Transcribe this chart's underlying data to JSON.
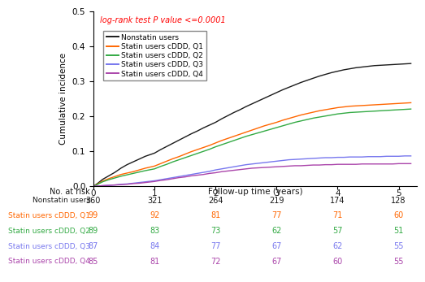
{
  "ylabel": "Cumulative incidence",
  "xlabel": "Follow-up time (years)",
  "xlim": [
    0,
    5.3
  ],
  "ylim": [
    0,
    0.5
  ],
  "yticks": [
    0.0,
    0.1,
    0.2,
    0.3,
    0.4,
    0.5
  ],
  "xticks": [
    0,
    1,
    2,
    3,
    4,
    5
  ],
  "annotation": "log-rank test P value <=0.0001",
  "annotation_color": "#FF0000",
  "legend_labels": [
    "Nonstatin users",
    "Statin users cDDD, Q1",
    "Statin users cDDD, Q2",
    "Statin users cDDD, Q3",
    "Statin users cDDD, Q4"
  ],
  "line_colors": [
    "#1a1a1a",
    "#FF6600",
    "#33AA44",
    "#7777EE",
    "#AA44AA"
  ],
  "line_widths": [
    1.0,
    1.0,
    1.0,
    1.0,
    1.0
  ],
  "risk_table_title": "No. at risk",
  "risk_table_rows": [
    "Nonstatin users",
    "Statin users cDDD, Q1",
    "Statin users cDDD, Q2",
    "Statin users cDDD, Q3",
    "Statin users cDDD, Q4"
  ],
  "risk_table_colors": [
    "#1a1a1a",
    "#FF6600",
    "#33AA44",
    "#7777EE",
    "#AA44AA"
  ],
  "risk_table_times": [
    0,
    1,
    2,
    3,
    4,
    5
  ],
  "risk_table_values": [
    [
      360,
      321,
      264,
      219,
      174,
      128
    ],
    [
      99,
      92,
      81,
      77,
      71,
      60
    ],
    [
      89,
      83,
      73,
      62,
      57,
      51
    ],
    [
      87,
      84,
      77,
      67,
      62,
      55
    ],
    [
      85,
      81,
      72,
      67,
      60,
      55
    ]
  ],
  "curves": {
    "nonstatin": {
      "x": [
        0,
        0.08,
        0.15,
        0.25,
        0.35,
        0.45,
        0.55,
        0.65,
        0.75,
        0.85,
        1.0,
        1.1,
        1.2,
        1.3,
        1.4,
        1.5,
        1.6,
        1.7,
        1.8,
        1.9,
        2.0,
        2.1,
        2.2,
        2.3,
        2.4,
        2.5,
        2.6,
        2.7,
        2.8,
        2.9,
        3.0,
        3.1,
        3.2,
        3.3,
        3.4,
        3.5,
        3.6,
        3.7,
        3.8,
        3.9,
        4.0,
        4.1,
        4.2,
        4.3,
        4.4,
        4.5,
        4.6,
        4.7,
        4.8,
        4.9,
        5.0,
        5.1,
        5.2
      ],
      "y": [
        0.0,
        0.01,
        0.02,
        0.03,
        0.04,
        0.052,
        0.062,
        0.07,
        0.078,
        0.086,
        0.095,
        0.105,
        0.114,
        0.123,
        0.132,
        0.141,
        0.15,
        0.158,
        0.167,
        0.175,
        0.183,
        0.193,
        0.202,
        0.211,
        0.219,
        0.228,
        0.236,
        0.244,
        0.252,
        0.26,
        0.268,
        0.276,
        0.283,
        0.29,
        0.297,
        0.303,
        0.309,
        0.315,
        0.32,
        0.325,
        0.329,
        0.333,
        0.336,
        0.339,
        0.341,
        0.343,
        0.345,
        0.346,
        0.347,
        0.348,
        0.349,
        0.35,
        0.351
      ]
    },
    "q1": {
      "x": [
        0,
        0.08,
        0.15,
        0.25,
        0.35,
        0.45,
        0.55,
        0.65,
        0.75,
        0.85,
        1.0,
        1.1,
        1.2,
        1.3,
        1.4,
        1.5,
        1.6,
        1.7,
        1.8,
        1.9,
        2.0,
        2.1,
        2.2,
        2.3,
        2.4,
        2.5,
        2.6,
        2.7,
        2.8,
        2.9,
        3.0,
        3.1,
        3.2,
        3.3,
        3.4,
        3.5,
        3.6,
        3.7,
        3.8,
        3.9,
        4.0,
        4.1,
        4.2,
        4.3,
        4.4,
        4.5,
        4.6,
        4.7,
        4.8,
        4.9,
        5.0,
        5.1,
        5.2
      ],
      "y": [
        0.0,
        0.008,
        0.015,
        0.022,
        0.028,
        0.034,
        0.038,
        0.042,
        0.047,
        0.052,
        0.058,
        0.065,
        0.072,
        0.079,
        0.085,
        0.092,
        0.099,
        0.105,
        0.111,
        0.117,
        0.124,
        0.131,
        0.137,
        0.143,
        0.149,
        0.155,
        0.161,
        0.167,
        0.173,
        0.178,
        0.183,
        0.189,
        0.194,
        0.199,
        0.204,
        0.208,
        0.212,
        0.216,
        0.219,
        0.222,
        0.225,
        0.227,
        0.229,
        0.23,
        0.231,
        0.232,
        0.233,
        0.234,
        0.235,
        0.236,
        0.237,
        0.238,
        0.239
      ]
    },
    "q2": {
      "x": [
        0,
        0.08,
        0.15,
        0.25,
        0.35,
        0.45,
        0.55,
        0.65,
        0.75,
        0.85,
        1.0,
        1.1,
        1.2,
        1.3,
        1.4,
        1.5,
        1.6,
        1.7,
        1.8,
        1.9,
        2.0,
        2.1,
        2.2,
        2.3,
        2.4,
        2.5,
        2.6,
        2.7,
        2.8,
        2.9,
        3.0,
        3.1,
        3.2,
        3.3,
        3.4,
        3.5,
        3.6,
        3.7,
        3.8,
        3.9,
        4.0,
        4.1,
        4.2,
        4.3,
        4.4,
        4.5,
        4.6,
        4.7,
        4.8,
        4.9,
        5.0,
        5.1,
        5.2
      ],
      "y": [
        0.0,
        0.007,
        0.013,
        0.019,
        0.024,
        0.029,
        0.033,
        0.037,
        0.041,
        0.045,
        0.05,
        0.057,
        0.063,
        0.07,
        0.076,
        0.082,
        0.088,
        0.094,
        0.1,
        0.106,
        0.113,
        0.119,
        0.125,
        0.131,
        0.137,
        0.143,
        0.148,
        0.153,
        0.158,
        0.163,
        0.168,
        0.173,
        0.178,
        0.183,
        0.187,
        0.191,
        0.195,
        0.198,
        0.201,
        0.204,
        0.207,
        0.209,
        0.211,
        0.212,
        0.213,
        0.214,
        0.215,
        0.216,
        0.217,
        0.218,
        0.219,
        0.22,
        0.221
      ]
    },
    "q3": {
      "x": [
        0,
        0.08,
        0.15,
        0.25,
        0.35,
        0.45,
        0.55,
        0.65,
        0.75,
        0.85,
        1.0,
        1.1,
        1.2,
        1.3,
        1.4,
        1.5,
        1.6,
        1.7,
        1.8,
        1.9,
        2.0,
        2.1,
        2.2,
        2.3,
        2.4,
        2.5,
        2.6,
        2.7,
        2.8,
        2.9,
        3.0,
        3.1,
        3.2,
        3.3,
        3.4,
        3.5,
        3.6,
        3.7,
        3.8,
        3.9,
        4.0,
        4.1,
        4.2,
        4.3,
        4.4,
        4.5,
        4.6,
        4.7,
        4.8,
        4.9,
        5.0,
        5.1,
        5.2
      ],
      "y": [
        0.0,
        0.001,
        0.002,
        0.003,
        0.004,
        0.006,
        0.007,
        0.009,
        0.011,
        0.013,
        0.016,
        0.019,
        0.022,
        0.025,
        0.028,
        0.031,
        0.034,
        0.037,
        0.04,
        0.043,
        0.047,
        0.05,
        0.053,
        0.056,
        0.059,
        0.062,
        0.064,
        0.066,
        0.068,
        0.07,
        0.072,
        0.074,
        0.076,
        0.077,
        0.078,
        0.079,
        0.08,
        0.081,
        0.082,
        0.082,
        0.083,
        0.083,
        0.084,
        0.084,
        0.084,
        0.085,
        0.085,
        0.085,
        0.086,
        0.086,
        0.086,
        0.087,
        0.087
      ]
    },
    "q4": {
      "x": [
        0,
        0.08,
        0.15,
        0.25,
        0.35,
        0.45,
        0.55,
        0.65,
        0.75,
        0.85,
        1.0,
        1.1,
        1.2,
        1.3,
        1.4,
        1.5,
        1.6,
        1.7,
        1.8,
        1.9,
        2.0,
        2.1,
        2.2,
        2.3,
        2.4,
        2.5,
        2.6,
        2.7,
        2.8,
        2.9,
        3.0,
        3.1,
        3.2,
        3.3,
        3.4,
        3.5,
        3.6,
        3.7,
        3.8,
        3.9,
        4.0,
        4.1,
        4.2,
        4.3,
        4.4,
        4.5,
        4.6,
        4.7,
        4.8,
        4.9,
        5.0,
        5.1,
        5.2
      ],
      "y": [
        0.0,
        0.001,
        0.002,
        0.003,
        0.004,
        0.005,
        0.006,
        0.008,
        0.009,
        0.011,
        0.014,
        0.017,
        0.019,
        0.022,
        0.025,
        0.027,
        0.03,
        0.032,
        0.034,
        0.037,
        0.039,
        0.042,
        0.044,
        0.046,
        0.048,
        0.05,
        0.052,
        0.053,
        0.054,
        0.055,
        0.056,
        0.057,
        0.058,
        0.059,
        0.059,
        0.06,
        0.061,
        0.061,
        0.062,
        0.062,
        0.063,
        0.063,
        0.063,
        0.063,
        0.064,
        0.064,
        0.064,
        0.064,
        0.064,
        0.064,
        0.065,
        0.065,
        0.065
      ]
    }
  }
}
